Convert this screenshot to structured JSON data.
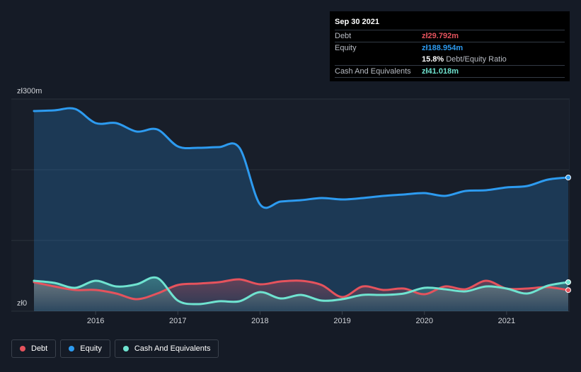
{
  "tooltip": {
    "date": "Sep 30 2021",
    "debt_label": "Debt",
    "debt_value": "zł29.792m",
    "equity_label": "Equity",
    "equity_value": "zł188.954m",
    "ratio_value": "15.8%",
    "ratio_label": "Debt/Equity Ratio",
    "cash_label": "Cash And Equivalents",
    "cash_value": "zł41.018m"
  },
  "colors": {
    "debt": "#e5535d",
    "equity": "#2d9bf0",
    "cash": "#6fe3d0",
    "background": "#151b26",
    "plot_area": "#181e29"
  },
  "legend": [
    {
      "name": "Debt",
      "color": "#e5535d"
    },
    {
      "name": "Equity",
      "color": "#2d9bf0"
    },
    {
      "name": "Cash And Equivalents",
      "color": "#6fe3d0"
    }
  ],
  "chart_data": {
    "type": "area",
    "ylim": [
      0,
      300
    ],
    "xlim": [
      2015.25,
      2021.75
    ],
    "y_tick_labels": [
      {
        "value": 300,
        "label": "zł300m"
      },
      {
        "value": 0,
        "label": "zł0"
      }
    ],
    "x_tick_labels": [
      {
        "value": 2016,
        "label": "2016"
      },
      {
        "value": 2017,
        "label": "2017"
      },
      {
        "value": 2018,
        "label": "2018"
      },
      {
        "value": 2019,
        "label": "2019"
      },
      {
        "value": 2020,
        "label": "2020"
      },
      {
        "value": 2021,
        "label": "2021"
      }
    ],
    "grid": true,
    "legend_position": "bottom-left",
    "series": [
      {
        "name": "Equity",
        "key": "equity",
        "x": [
          2015.25,
          2015.5,
          2015.75,
          2016.0,
          2016.25,
          2016.5,
          2016.75,
          2017.0,
          2017.25,
          2017.5,
          2017.75,
          2018.0,
          2018.25,
          2018.5,
          2018.75,
          2019.0,
          2019.25,
          2019.5,
          2019.75,
          2020.0,
          2020.25,
          2020.5,
          2020.75,
          2021.0,
          2021.25,
          2021.5,
          2021.75
        ],
        "values": [
          283,
          284,
          286,
          266,
          266,
          254,
          257,
          233,
          231,
          232,
          231,
          151,
          155,
          157,
          160,
          158,
          160,
          163,
          165,
          167,
          163,
          170,
          171,
          175,
          177,
          186,
          189
        ]
      },
      {
        "name": "Debt",
        "key": "debt",
        "x": [
          2015.25,
          2015.5,
          2015.75,
          2016.0,
          2016.25,
          2016.5,
          2016.75,
          2017.0,
          2017.25,
          2017.5,
          2017.75,
          2018.0,
          2018.25,
          2018.5,
          2018.75,
          2019.0,
          2019.25,
          2019.5,
          2019.75,
          2020.0,
          2020.25,
          2020.5,
          2020.75,
          2021.0,
          2021.25,
          2021.5,
          2021.75
        ],
        "values": [
          41,
          35,
          30,
          30,
          25,
          17,
          25,
          37,
          39,
          41,
          45,
          38,
          42,
          43,
          37,
          20,
          35,
          30,
          32,
          24,
          35,
          31,
          43,
          32,
          32,
          34,
          29.792
        ]
      },
      {
        "name": "Cash And Equivalents",
        "key": "cash",
        "x": [
          2015.25,
          2015.5,
          2015.75,
          2016.0,
          2016.25,
          2016.5,
          2016.75,
          2017.0,
          2017.25,
          2017.5,
          2017.75,
          2018.0,
          2018.25,
          2018.5,
          2018.75,
          2019.0,
          2019.25,
          2019.5,
          2019.75,
          2020.0,
          2020.25,
          2020.5,
          2020.75,
          2021.0,
          2021.25,
          2021.5,
          2021.75
        ],
        "values": [
          43,
          40,
          33,
          43,
          35,
          38,
          47,
          15,
          10,
          14,
          14,
          27,
          18,
          23,
          15,
          17,
          23,
          23,
          25,
          33,
          31,
          28,
          35,
          32,
          25,
          36,
          41.018
        ]
      }
    ]
  }
}
